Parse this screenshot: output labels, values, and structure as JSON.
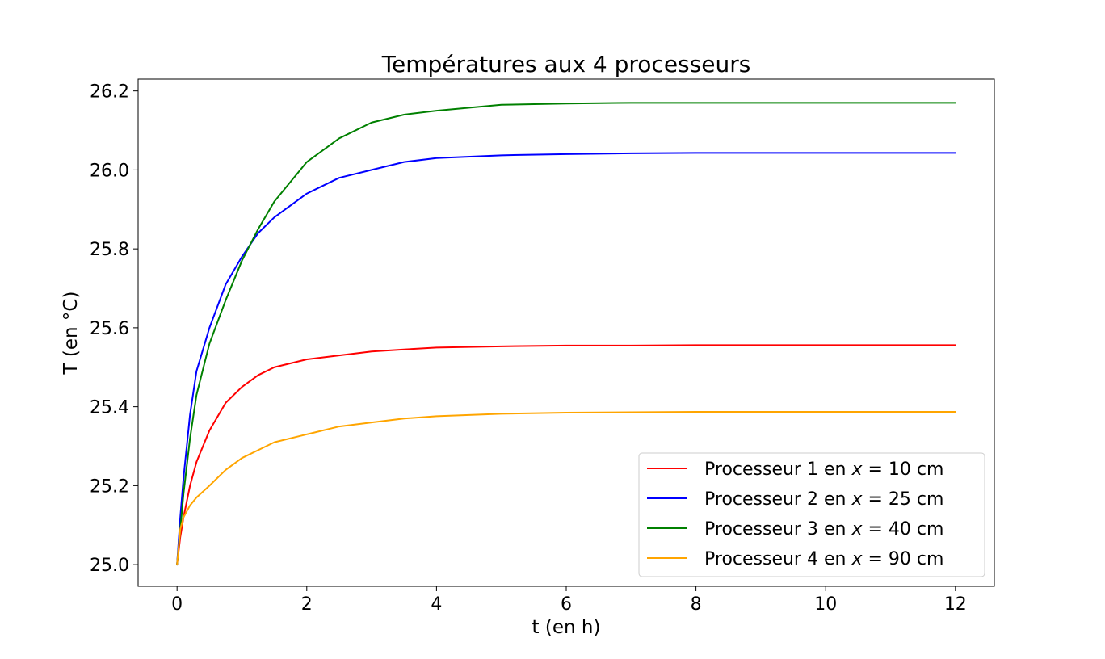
{
  "chart_data": {
    "type": "line",
    "title": "Températures aux 4 processeurs",
    "xlabel": "t (en h)",
    "ylabel": "T (en °C)",
    "xlim": [
      -0.6,
      12.6
    ],
    "ylim": [
      24.945,
      26.23
    ],
    "xticks": [
      0,
      2,
      4,
      6,
      8,
      10,
      12
    ],
    "xtick_labels": [
      "0",
      "2",
      "4",
      "6",
      "8",
      "10",
      "12"
    ],
    "yticks": [
      25.0,
      25.2,
      25.4,
      25.6,
      25.8,
      26.0,
      26.2
    ],
    "ytick_labels": [
      "25.0",
      "25.2",
      "25.4",
      "25.6",
      "25.8",
      "26.0",
      "26.2"
    ],
    "grid": false,
    "legend_position": "lower-right",
    "x": [
      0,
      0.05,
      0.1,
      0.2,
      0.3,
      0.5,
      0.75,
      1,
      1.25,
      1.5,
      2,
      2.5,
      3,
      3.5,
      4,
      5,
      6,
      7,
      8,
      9,
      10,
      11,
      12
    ],
    "series": [
      {
        "name_prefix": "Processeur 1 en ",
        "name_var": "x",
        "name_suffix": " = 10 cm",
        "color": "#ff0000",
        "values": [
          25.0,
          25.07,
          25.12,
          25.2,
          25.26,
          25.34,
          25.41,
          25.45,
          25.48,
          25.5,
          25.52,
          25.53,
          25.54,
          25.545,
          25.55,
          25.553,
          25.555,
          25.555,
          25.556,
          25.556,
          25.556,
          25.556,
          25.556
        ]
      },
      {
        "name_prefix": "Processeur 2 en ",
        "name_var": "x",
        "name_suffix": " = 25 cm",
        "color": "#0000ff",
        "values": [
          25.0,
          25.12,
          25.22,
          25.38,
          25.49,
          25.6,
          25.71,
          25.78,
          25.84,
          25.88,
          25.94,
          25.98,
          26.0,
          26.02,
          26.03,
          26.037,
          26.04,
          26.042,
          26.043,
          26.043,
          26.043,
          26.043,
          26.043
        ]
      },
      {
        "name_prefix": "Processeur 3 en ",
        "name_var": "x",
        "name_suffix": " = 40 cm",
        "color": "#008000",
        "values": [
          25.0,
          25.09,
          25.18,
          25.32,
          25.43,
          25.56,
          25.67,
          25.77,
          25.85,
          25.92,
          26.02,
          26.08,
          26.12,
          26.14,
          26.15,
          26.165,
          26.168,
          26.17,
          26.17,
          26.17,
          26.17,
          26.17,
          26.17
        ]
      },
      {
        "name_prefix": "Processeur 4 en ",
        "name_var": "x",
        "name_suffix": " = 90 cm",
        "color": "#ffa500",
        "values": [
          25.0,
          25.09,
          25.12,
          25.15,
          25.17,
          25.2,
          25.24,
          25.27,
          25.29,
          25.31,
          25.33,
          25.35,
          25.36,
          25.37,
          25.376,
          25.382,
          25.385,
          25.386,
          25.387,
          25.387,
          25.387,
          25.387,
          25.387
        ]
      }
    ]
  }
}
